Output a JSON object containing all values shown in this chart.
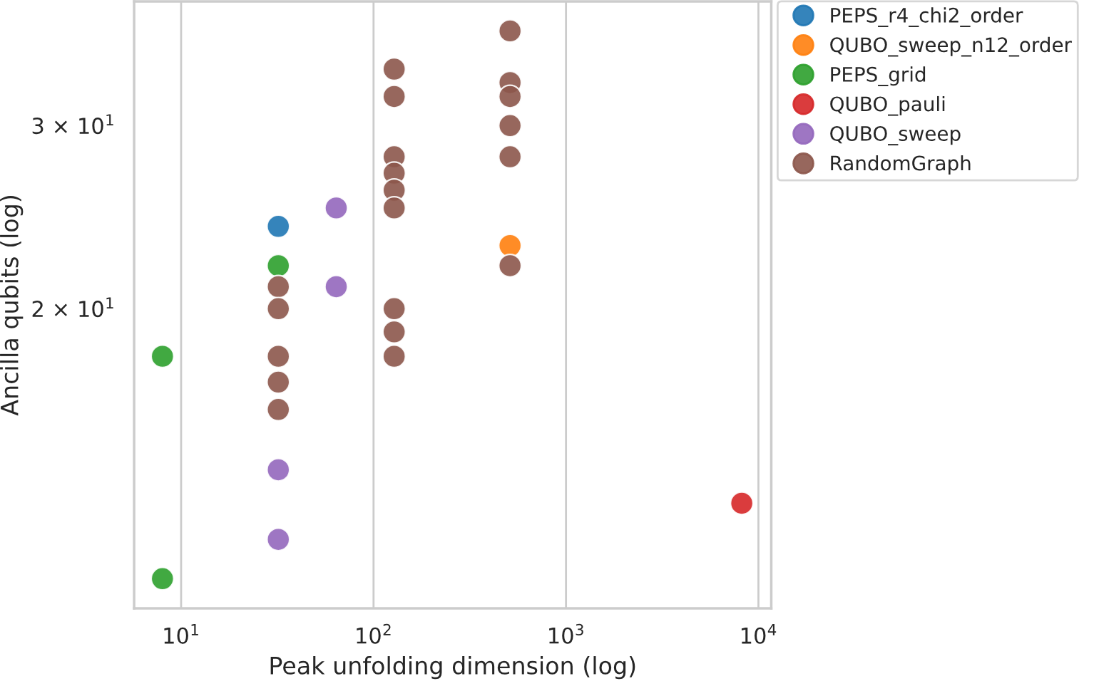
{
  "chart_data": {
    "type": "scatter",
    "xlabel": "Peak unfolding dimension (log)",
    "ylabel": "Ancilla qubits (log)",
    "log": "xy",
    "grid": "x",
    "legend": "top right",
    "marker": "circle",
    "xlim": [
      5.7,
      11660
    ],
    "ylim": [
      10.3,
      39.5
    ],
    "xticks": [
      {
        "value": 10,
        "label": "10$^{1}$"
      },
      {
        "value": 100,
        "label": "10$^{2}$"
      },
      {
        "value": 1000,
        "label": "10$^{3}$"
      },
      {
        "value": 10000,
        "label": "10$^{4}$"
      }
    ],
    "yticks": [
      {
        "value": 20,
        "label": "2 × 10$^{1}$"
      },
      {
        "value": 30,
        "label": "3 × 10$^{1}$"
      }
    ],
    "series": [
      {
        "name": "PEPS_r4_chi2_order",
        "color": "#1f77b4",
        "x": [
          32
        ],
        "values": [
          24
        ]
      },
      {
        "name": "QUBO_sweep_n12_order",
        "color": "#ff7f0e",
        "x": [
          512
        ],
        "values": [
          23
        ]
      },
      {
        "name": "PEPS_grid",
        "color": "#2ca02c",
        "x": [
          8,
          8,
          32
        ],
        "values": [
          18,
          11,
          22
        ]
      },
      {
        "name": "QUBO_pauli",
        "color": "#d62728",
        "x": [
          8192
        ],
        "values": [
          13
        ]
      },
      {
        "name": "QUBO_sweep",
        "color": "#9467bd",
        "x": [
          32,
          32,
          64,
          64
        ],
        "values": [
          14,
          12,
          25,
          21
        ]
      },
      {
        "name": "RandomGraph",
        "color": "#8c564b",
        "x": [
          32,
          32,
          32,
          32,
          32,
          128,
          128,
          128,
          128,
          128,
          128,
          128,
          128,
          128,
          512,
          512,
          512,
          512,
          512,
          512
        ],
        "values": [
          21,
          20,
          18,
          17,
          16,
          34,
          32,
          28,
          27,
          26,
          25,
          20,
          19,
          18,
          37,
          33,
          32,
          30,
          28,
          22
        ]
      }
    ]
  }
}
